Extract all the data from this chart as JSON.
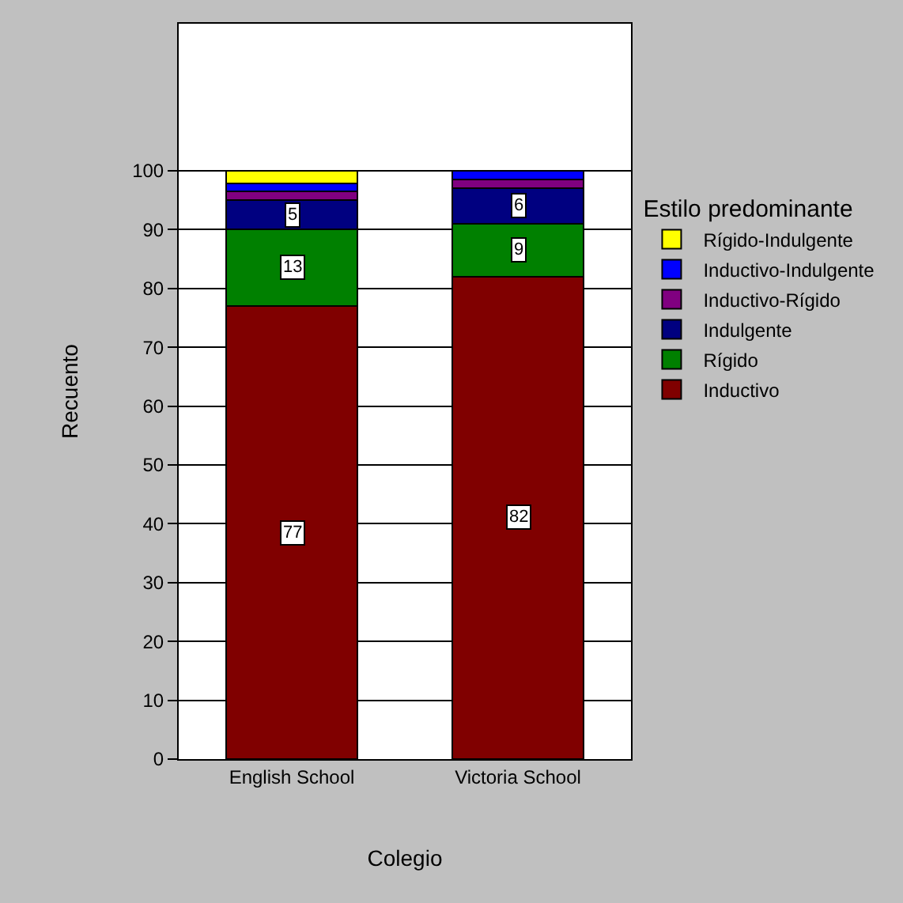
{
  "chart_data": {
    "type": "bar",
    "stacked": true,
    "xlabel": "Colegio",
    "ylabel": "Recuento",
    "legend_title": "Estilo predominante",
    "legend": "right",
    "grid": "y",
    "categories": [
      "English School",
      "Victoria School"
    ],
    "ylim": [
      0,
      125
    ],
    "yticks": [
      0,
      10,
      20,
      30,
      40,
      50,
      60,
      70,
      80,
      90,
      100
    ],
    "series": [
      {
        "name": "Inductivo",
        "color": "#800000",
        "values": [
          77,
          82
        ],
        "value_labels": [
          "77",
          "82"
        ]
      },
      {
        "name": "Rígido",
        "color": "#008000",
        "values": [
          13,
          9
        ],
        "value_labels": [
          "13",
          "9"
        ]
      },
      {
        "name": "Indulgente",
        "color": "#000080",
        "values": [
          5,
          6
        ],
        "value_labels": [
          "5",
          "6"
        ]
      },
      {
        "name": "Inductivo-Rígido",
        "color": "#800080",
        "values": [
          1.5,
          1.5
        ]
      },
      {
        "name": "Inductivo-Indulgente",
        "color": "#0000ff",
        "values": [
          1.3,
          1.5
        ]
      },
      {
        "name": "Rígido-Indulgente",
        "color": "#ffff00",
        "values": [
          2.2,
          null
        ]
      }
    ]
  }
}
